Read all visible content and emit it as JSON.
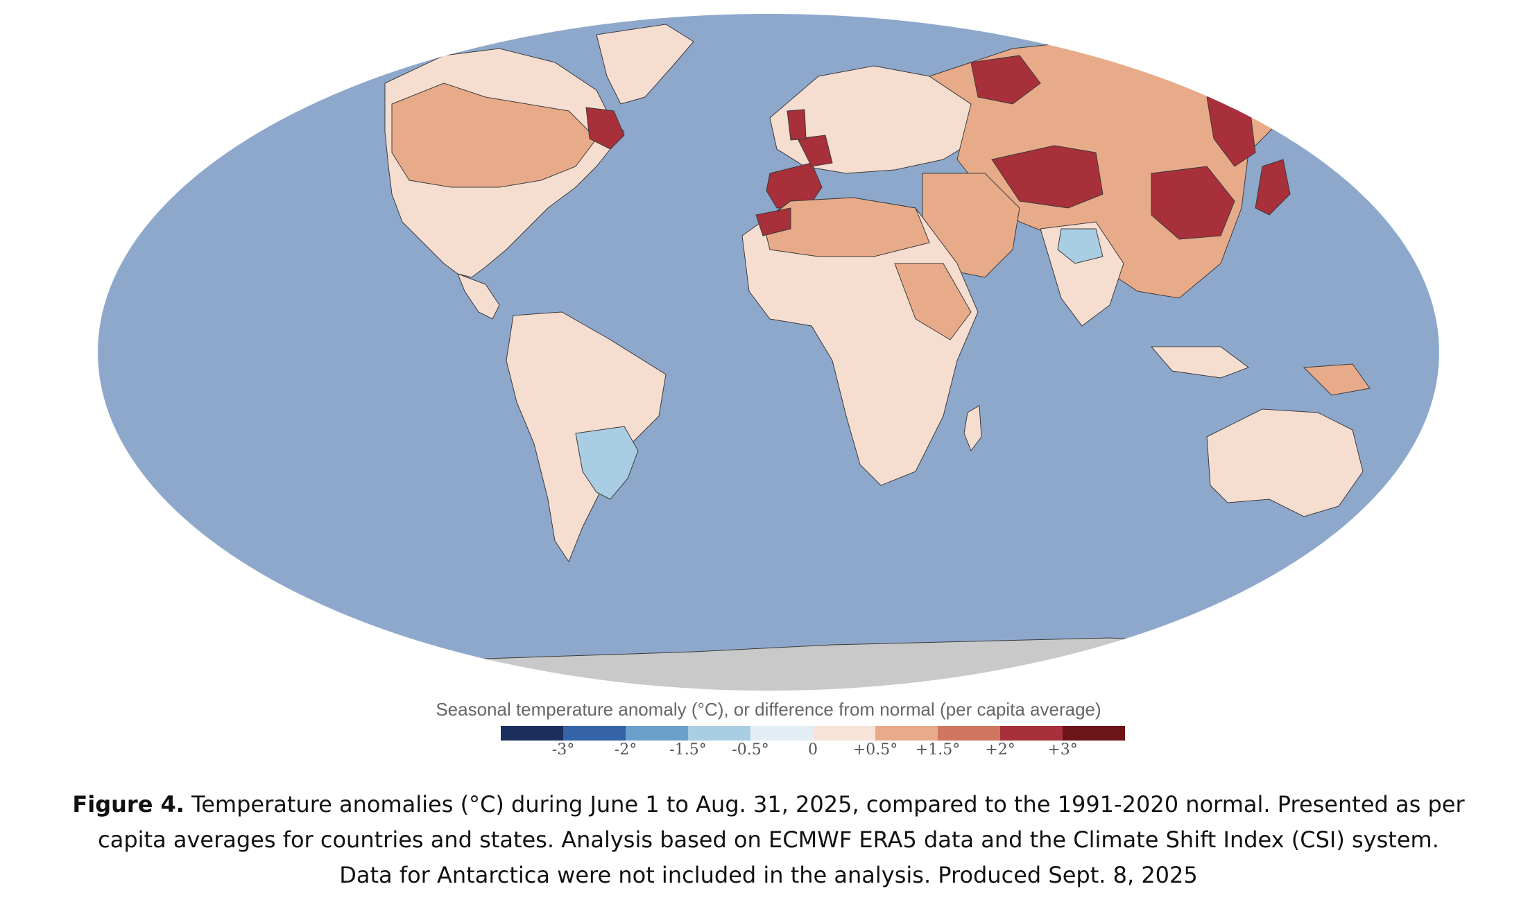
{
  "legend": {
    "title": "Seasonal temperature anomaly (°C), or difference from normal (per capita average)",
    "colors": [
      "#1b2f5e",
      "#3463a8",
      "#6ba0cb",
      "#a9cde3",
      "#e2eef4",
      "#f8e3d8",
      "#e8ab8a",
      "#cf7660",
      "#a8303b",
      "#6b1519"
    ],
    "ticks": [
      "-3°",
      "-2°",
      "-1.5°",
      "-0.5°",
      "0",
      "+0.5°",
      "+1.5°",
      "+2°",
      "+3°"
    ]
  },
  "map": {
    "ocean_color": "#8ea8cc",
    "antarctica_color": "#c9c9c9"
  },
  "caption": {
    "label": "Figure 4.",
    "text": "Temperature anomalies (°C) during June 1 to Aug. 31, 2025, compared to the 1991-2020 normal. Presented as per capita averages for countries and states. Analysis based on ECMWF ERA5 data and the Climate Shift Index (CSI) system. Data for Antarctica were not included in the analysis. Produced Sept. 8, 2025"
  }
}
